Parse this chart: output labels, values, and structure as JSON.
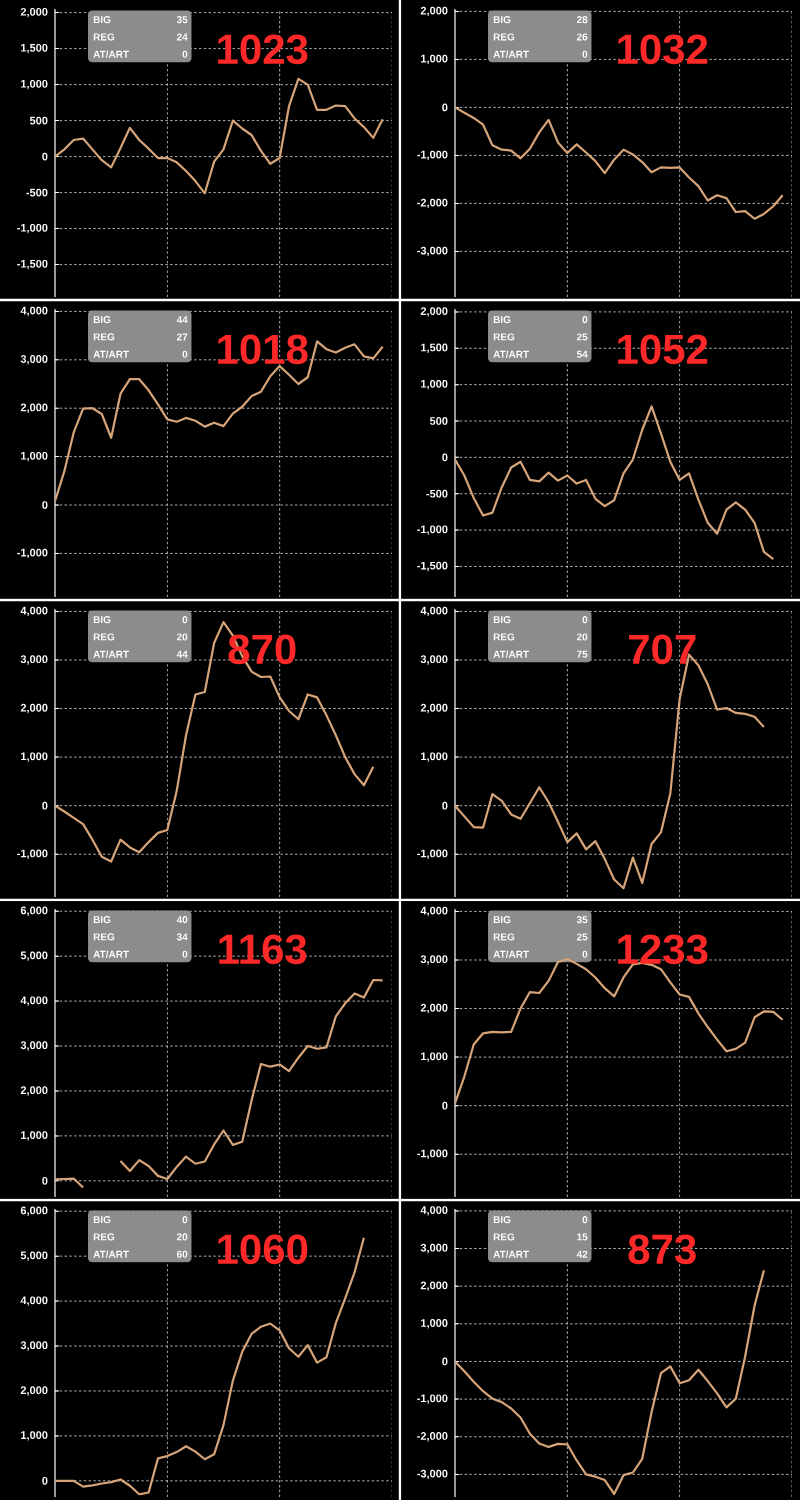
{
  "chart_data": [
    {
      "type": "line",
      "title": "1023",
      "annotations": [
        "BIG",
        "35",
        "REG",
        "24",
        "AT/ART",
        "0"
      ],
      "tick_labels": "y",
      "grid": true,
      "color": "#d6a478",
      "categories": [
        null,
        null,
        null,
        null,
        null,
        null,
        null,
        null,
        null,
        null,
        null,
        null,
        null,
        null,
        null,
        null,
        null,
        null,
        null,
        null,
        null,
        null,
        null,
        null,
        null,
        null,
        null,
        null,
        null,
        null,
        null,
        null,
        null,
        null,
        null,
        null,
        null
      ],
      "values": [
        0,
        100,
        230,
        250,
        100,
        -50,
        -150,
        120,
        400,
        230,
        110,
        -20,
        -20,
        -80,
        -200,
        -340,
        -510,
        -70,
        100,
        500,
        390,
        300,
        80,
        -100,
        -20,
        700,
        1080,
        1000,
        650,
        650,
        710,
        700,
        530,
        410,
        260,
        520,
        null
      ],
      "ylim": [
        -1950,
        2050
      ],
      "yticks": [
        {
          "value": -1500,
          "label": "-1,500"
        },
        {
          "value": -1000,
          "label": "-1,000"
        },
        -500,
        0,
        500,
        {
          "value": 1000,
          "label": "1,000"
        },
        {
          "value": 1500,
          "label": "1,500"
        },
        {
          "value": 2000,
          "label": "2,000"
        }
      ]
    },
    {
      "type": "line",
      "title": "1032",
      "annotations": [
        "BIG",
        "28",
        "REG",
        "26",
        "AT/ART",
        "0"
      ],
      "tick_labels": "y",
      "grid": true,
      "color": "#d6a478",
      "categories": [
        null,
        null,
        null,
        null,
        null,
        null,
        null,
        null,
        null,
        null,
        null,
        null,
        null,
        null,
        null,
        null,
        null,
        null,
        null,
        null,
        null,
        null,
        null,
        null,
        null,
        null,
        null,
        null,
        null,
        null,
        null,
        null,
        null,
        null,
        null,
        null,
        null
      ],
      "values": [
        0,
        -110,
        -220,
        -360,
        -790,
        -880,
        -900,
        -1060,
        -860,
        -520,
        -260,
        -730,
        -950,
        -770,
        -940,
        -1120,
        -1370,
        -1090,
        -880,
        -980,
        -1140,
        -1350,
        -1250,
        -1260,
        -1250,
        -1460,
        -1640,
        -1940,
        -1830,
        -1890,
        -2180,
        -2160,
        -2320,
        -2220,
        -2060,
        -1830,
        null
      ],
      "ylim": [
        -3950,
        2050
      ],
      "yticks": [
        {
          "value": -3000,
          "label": "-3,000"
        },
        {
          "value": -2000,
          "label": "-2,000"
        },
        {
          "value": -1000,
          "label": "-1,000"
        },
        0,
        {
          "value": 1000,
          "label": "1,000"
        },
        {
          "value": 2000,
          "label": "2,000"
        }
      ]
    },
    {
      "type": "line",
      "title": "1018",
      "annotations": [
        "BIG",
        "44",
        "REG",
        "27",
        "AT/ART",
        "0"
      ],
      "tick_labels": "y",
      "grid": true,
      "color": "#d6a478",
      "categories": [
        null,
        null,
        null,
        null,
        null,
        null,
        null,
        null,
        null,
        null,
        null,
        null,
        null,
        null,
        null,
        null,
        null,
        null,
        null,
        null,
        null,
        null,
        null,
        null,
        null,
        null,
        null,
        null,
        null,
        null,
        null,
        null,
        null,
        null,
        null,
        null,
        null
      ],
      "values": [
        80,
        700,
        1500,
        1990,
        2000,
        1880,
        1390,
        2300,
        2600,
        2600,
        2370,
        2080,
        1770,
        1720,
        1800,
        1740,
        1620,
        1700,
        1630,
        1890,
        2030,
        2250,
        2340,
        2660,
        2870,
        2690,
        2500,
        2640,
        3380,
        3220,
        3150,
        3250,
        3320,
        3070,
        3030,
        3270,
        null
      ],
      "ylim": [
        -1900,
        4050
      ],
      "yticks": [
        {
          "value": -1000,
          "label": "-1,000"
        },
        0,
        {
          "value": 1000,
          "label": "1,000"
        },
        {
          "value": 2000,
          "label": "2,000"
        },
        {
          "value": 3000,
          "label": "3,000"
        },
        {
          "value": 4000,
          "label": "4,000"
        }
      ]
    },
    {
      "type": "line",
      "title": "1052",
      "annotations": [
        "BIG",
        "0",
        "REG",
        "25",
        "AT/ART",
        "54"
      ],
      "tick_labels": "y",
      "grid": true,
      "color": "#d6a478",
      "categories": [
        null,
        null,
        null,
        null,
        null,
        null,
        null,
        null,
        null,
        null,
        null,
        null,
        null,
        null,
        null,
        null,
        null,
        null,
        null,
        null,
        null,
        null,
        null,
        null,
        null,
        null,
        null,
        null,
        null,
        null,
        null,
        null,
        null,
        null,
        null,
        null,
        null
      ],
      "values": [
        -30,
        -250,
        -560,
        -800,
        -760,
        -410,
        -140,
        -60,
        -310,
        -330,
        -210,
        -320,
        -250,
        -360,
        -310,
        -570,
        -670,
        -590,
        -220,
        -30,
        380,
        700,
        330,
        -60,
        -310,
        -220,
        -580,
        -900,
        -1050,
        -720,
        -620,
        -720,
        -900,
        -1300,
        -1400,
        null,
        null
      ],
      "ylim": [
        -1920,
        2040
      ],
      "yticks": [
        {
          "value": -1500,
          "label": "-1,500"
        },
        {
          "value": -1000,
          "label": "-1,000"
        },
        -500,
        0,
        500,
        {
          "value": 1000,
          "label": "1,000"
        },
        {
          "value": 1500,
          "label": "1,500"
        },
        {
          "value": 2000,
          "label": "2,000"
        }
      ]
    },
    {
      "type": "line",
      "title": "870",
      "annotations": [
        "BIG",
        "0",
        "REG",
        "20",
        "AT/ART",
        "44"
      ],
      "tick_labels": "y",
      "grid": true,
      "color": "#d6a478",
      "categories": [
        null,
        null,
        null,
        null,
        null,
        null,
        null,
        null,
        null,
        null,
        null,
        null,
        null,
        null,
        null,
        null,
        null,
        null,
        null,
        null,
        null,
        null,
        null,
        null,
        null,
        null,
        null,
        null,
        null,
        null,
        null,
        null,
        null,
        null,
        null,
        null,
        null
      ],
      "values": [
        0,
        -120,
        -250,
        -380,
        -700,
        -1050,
        -1150,
        -700,
        -860,
        -960,
        -750,
        -560,
        -500,
        300,
        1450,
        2290,
        2340,
        3350,
        3780,
        3500,
        3080,
        2760,
        2650,
        2660,
        2230,
        1950,
        1780,
        2290,
        2230,
        1860,
        1450,
        1000,
        650,
        420,
        800,
        null,
        null
      ],
      "ylim": [
        -1880,
        4050
      ],
      "yticks": [
        {
          "value": -1000,
          "label": "-1,000"
        },
        0,
        {
          "value": 1000,
          "label": "1,000"
        },
        {
          "value": 2000,
          "label": "2,000"
        },
        {
          "value": 3000,
          "label": "3,000"
        },
        {
          "value": 4000,
          "label": "4,000"
        }
      ]
    },
    {
      "type": "line",
      "title": "707",
      "annotations": [
        "BIG",
        "0",
        "REG",
        "20",
        "AT/ART",
        "75"
      ],
      "tick_labels": "y",
      "grid": true,
      "color": "#d6a478",
      "categories": [
        null,
        null,
        null,
        null,
        null,
        null,
        null,
        null,
        null,
        null,
        null,
        null,
        null,
        null,
        null,
        null,
        null,
        null,
        null,
        null,
        null,
        null,
        null,
        null,
        null,
        null,
        null,
        null,
        null,
        null,
        null,
        null,
        null,
        null,
        null,
        null,
        null
      ],
      "values": [
        0,
        -220,
        -440,
        -450,
        240,
        100,
        -180,
        -270,
        50,
        380,
        70,
        -330,
        -750,
        -570,
        -900,
        -730,
        -1100,
        -1520,
        -1700,
        -1070,
        -1590,
        -790,
        -550,
        250,
        2200,
        3110,
        2890,
        2500,
        1980,
        2010,
        1910,
        1890,
        1830,
        1620,
        null,
        null,
        null
      ],
      "ylim": [
        -1880,
        4050
      ],
      "yticks": [
        {
          "value": -1000,
          "label": "-1,000"
        },
        0,
        {
          "value": 1000,
          "label": "1,000"
        },
        {
          "value": 2000,
          "label": "2,000"
        },
        {
          "value": 3000,
          "label": "3,000"
        },
        {
          "value": 4000,
          "label": "4,000"
        }
      ]
    },
    {
      "type": "line",
      "title": "1163",
      "annotations": [
        "BIG",
        "40",
        "REG",
        "34",
        "AT/ART",
        "0"
      ],
      "tick_labels": "y",
      "grid": true,
      "color": "#d6a478",
      "categories": [
        null,
        null,
        null,
        null,
        null,
        null,
        null,
        null,
        null,
        null,
        null,
        null,
        null,
        null,
        null,
        null,
        null,
        null,
        null,
        null,
        null,
        null,
        null,
        null,
        null,
        null,
        null,
        null,
        null,
        null,
        null,
        null,
        null,
        null,
        null,
        null,
        null
      ],
      "values": [
        30,
        40,
        50,
        -150,
        null,
        null,
        null,
        440,
        220,
        460,
        330,
        110,
        40,
        310,
        540,
        380,
        430,
        810,
        1120,
        800,
        870,
        1790,
        2600,
        2540,
        2590,
        2440,
        2740,
        3000,
        2940,
        2970,
        3660,
        3950,
        4170,
        4080,
        4470,
        4460,
        null
      ],
      "ylim": [
        -360,
        6050
      ],
      "yticks": [
        0,
        {
          "value": 1000,
          "label": "1,000"
        },
        {
          "value": 2000,
          "label": "2,000"
        },
        {
          "value": 3000,
          "label": "3,000"
        },
        {
          "value": 4000,
          "label": "4,000"
        },
        {
          "value": 5000,
          "label": "5,000"
        },
        {
          "value": 6000,
          "label": "6,000"
        }
      ]
    },
    {
      "type": "line",
      "title": "1233",
      "annotations": [
        "BIG",
        "35",
        "REG",
        "25",
        "AT/ART",
        "0"
      ],
      "tick_labels": "y",
      "grid": true,
      "color": "#d6a478",
      "categories": [
        null,
        null,
        null,
        null,
        null,
        null,
        null,
        null,
        null,
        null,
        null,
        null,
        null,
        null,
        null,
        null,
        null,
        null,
        null,
        null,
        null,
        null,
        null,
        null,
        null,
        null,
        null,
        null,
        null,
        null,
        null,
        null,
        null,
        null,
        null,
        null,
        null
      ],
      "values": [
        50,
        600,
        1260,
        1490,
        1520,
        1510,
        1520,
        2000,
        2340,
        2320,
        2570,
        2960,
        3020,
        2920,
        2810,
        2640,
        2420,
        2250,
        2640,
        2910,
        2940,
        2900,
        2810,
        2540,
        2290,
        2240,
        1900,
        1620,
        1360,
        1120,
        1170,
        1300,
        1820,
        1940,
        1930,
        1770,
        null
      ],
      "ylim": [
        -1880,
        4050
      ],
      "yticks": [
        {
          "value": -1000,
          "label": "-1,000"
        },
        0,
        {
          "value": 1000,
          "label": "1,000"
        },
        {
          "value": 2000,
          "label": "2,000"
        },
        {
          "value": 3000,
          "label": "3,000"
        },
        {
          "value": 4000,
          "label": "4,000"
        }
      ]
    },
    {
      "type": "line",
      "title": "1060",
      "annotations": [
        "BIG",
        "0",
        "REG",
        "20",
        "AT/ART",
        "60"
      ],
      "tick_labels": "y",
      "grid": true,
      "color": "#d6a478",
      "categories": [
        null,
        null,
        null,
        null,
        null,
        null,
        null,
        null,
        null,
        null,
        null,
        null,
        null,
        null,
        null,
        null,
        null,
        null,
        null,
        null,
        null,
        null,
        null,
        null,
        null,
        null,
        null,
        null,
        null,
        null,
        null,
        null,
        null,
        null,
        null,
        null,
        null
      ],
      "values": [
        0,
        0,
        0,
        -130,
        -100,
        -60,
        -30,
        30,
        -110,
        -300,
        -260,
        500,
        550,
        640,
        770,
        650,
        480,
        590,
        1240,
        2230,
        2870,
        3270,
        3430,
        3500,
        3350,
        2950,
        2760,
        3020,
        2630,
        2750,
        3510,
        4060,
        4640,
        5410,
        null,
        null,
        null
      ],
      "ylim": [
        -360,
        6050
      ],
      "yticks": [
        0,
        {
          "value": 1000,
          "label": "1,000"
        },
        {
          "value": 2000,
          "label": "2,000"
        },
        {
          "value": 3000,
          "label": "3,000"
        },
        {
          "value": 4000,
          "label": "4,000"
        },
        {
          "value": 5000,
          "label": "5,000"
        },
        {
          "value": 6000,
          "label": "6,000"
        }
      ]
    },
    {
      "type": "line",
      "title": "873",
      "annotations": [
        "BIG",
        "0",
        "REG",
        "15",
        "AT/ART",
        "42"
      ],
      "tick_labels": "y",
      "grid": true,
      "color": "#d6a478",
      "categories": [
        null,
        null,
        null,
        null,
        null,
        null,
        null,
        null,
        null,
        null,
        null,
        null,
        null,
        null,
        null,
        null,
        null,
        null,
        null,
        null,
        null,
        null,
        null,
        null,
        null,
        null,
        null,
        null,
        null,
        null,
        null,
        null,
        null,
        null,
        null,
        null,
        null
      ],
      "values": [
        0,
        -260,
        -540,
        -790,
        -990,
        -1080,
        -1250,
        -1490,
        -1920,
        -2180,
        -2270,
        -2190,
        -2200,
        -2630,
        -3000,
        -3060,
        -3150,
        -3520,
        -3020,
        -2950,
        -2590,
        -1340,
        -310,
        -130,
        -580,
        -500,
        -220,
        -520,
        -850,
        -1220,
        -990,
        140,
        1480,
        2420,
        null,
        null,
        null
      ],
      "ylim": [
        -3600,
        4050
      ],
      "yticks": [
        {
          "value": -3000,
          "label": "-3,000"
        },
        {
          "value": -2000,
          "label": "-2,000"
        },
        {
          "value": -1000,
          "label": "-1,000"
        },
        0,
        {
          "value": 1000,
          "label": "1,000"
        },
        {
          "value": 2000,
          "label": "2,000"
        },
        {
          "value": 3000,
          "label": "3,000"
        },
        {
          "value": 4000,
          "label": "4,000"
        }
      ]
    }
  ]
}
